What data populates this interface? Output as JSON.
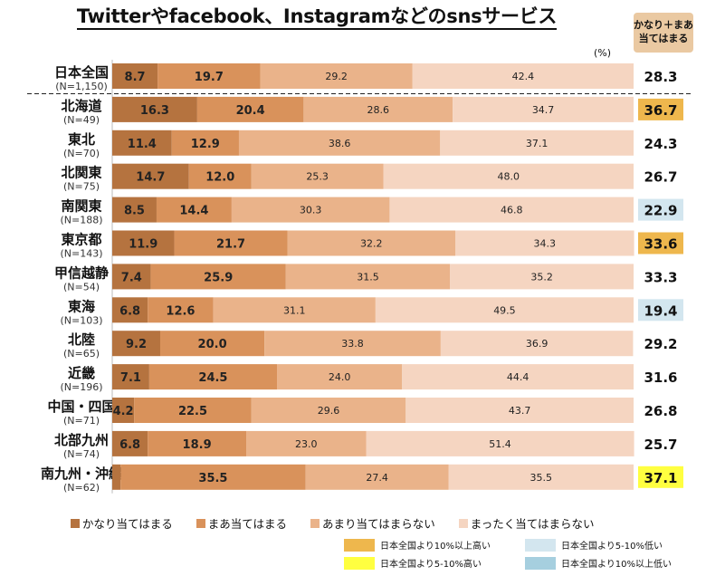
{
  "title": "Twitterやfacebook、Instagramなどのsnsサービス",
  "summary_header": [
    "かなり＋まあ",
    "当てはまる"
  ],
  "unit_label": "(%)",
  "legend": [
    {
      "label": "かなり当てはまる",
      "color": "#b5733f"
    },
    {
      "label": "まあ当てはまる",
      "color": "#d9925b"
    },
    {
      "label": "あまり当てはまらない",
      "color": "#eab38a"
    },
    {
      "label": "まったく当てはまらない",
      "color": "#f5d5c1"
    }
  ],
  "significance_legend": [
    {
      "label": "日本全国より10%以上高い",
      "color": "#eeb74d"
    },
    {
      "label": "日本全国より5-10%低い",
      "color": "#d3e6ef"
    },
    {
      "label": "日本全国より5-10%高い",
      "color": "#ffff40"
    },
    {
      "label": "日本全国より10%以上低い",
      "color": "#a6cfdf"
    }
  ],
  "chart_data": {
    "type": "bar",
    "orientation": "horizontal-stacked-100",
    "xlim": [
      0,
      100
    ],
    "categories": [
      "日本全国",
      "北海道",
      "東北",
      "北関東",
      "南関東",
      "東京都",
      "甲信越静",
      "東海",
      "北陸",
      "近畿",
      "中国・四国",
      "北部九州",
      "南九州・沖縄"
    ],
    "sample_sizes": [
      "(N=1,150)",
      "(N=49)",
      "(N=70)",
      "(N=75)",
      "(N=188)",
      "(N=143)",
      "(N=54)",
      "(N=103)",
      "(N=65)",
      "(N=196)",
      "(N=71)",
      "(N=74)",
      "(N=62)"
    ],
    "series": [
      {
        "name": "かなり当てはまる",
        "values": [
          8.7,
          16.3,
          11.4,
          14.7,
          8.5,
          11.9,
          7.4,
          6.8,
          9.2,
          7.1,
          4.2,
          6.8,
          1.6
        ]
      },
      {
        "name": "まあ当てはまる",
        "values": [
          19.7,
          20.4,
          12.9,
          12.0,
          14.4,
          21.7,
          25.9,
          12.6,
          20.0,
          24.5,
          22.5,
          18.9,
          35.5
        ]
      },
      {
        "name": "あまり当てはまらない",
        "values": [
          29.2,
          28.6,
          38.6,
          25.3,
          30.3,
          32.2,
          31.5,
          31.1,
          33.8,
          24.0,
          29.6,
          23.0,
          27.4
        ]
      },
      {
        "name": "まったく当てはまらない",
        "values": [
          42.4,
          34.7,
          37.1,
          48.0,
          46.8,
          34.3,
          35.2,
          49.5,
          36.9,
          44.4,
          43.7,
          51.4,
          35.5
        ]
      }
    ],
    "summary": {
      "values": [
        "28.3",
        "36.7",
        "24.3",
        "26.7",
        "22.9",
        "33.6",
        "33.3",
        "19.4",
        "29.2",
        "31.6",
        "26.8",
        "25.7",
        "37.1"
      ],
      "highlight": [
        "none",
        "up10",
        "none",
        "none",
        "down5",
        "up10",
        "none",
        "down5",
        "none",
        "none",
        "none",
        "none",
        "up5"
      ]
    },
    "highlight_colors": {
      "up10": "#eeb74d",
      "up5": "#ffff40",
      "down5": "#d3e6ef",
      "down10": "#a6cfdf"
    },
    "segment_colors": [
      "#b5733f",
      "#d9925b",
      "#eab38a",
      "#f5d5c1"
    ]
  }
}
